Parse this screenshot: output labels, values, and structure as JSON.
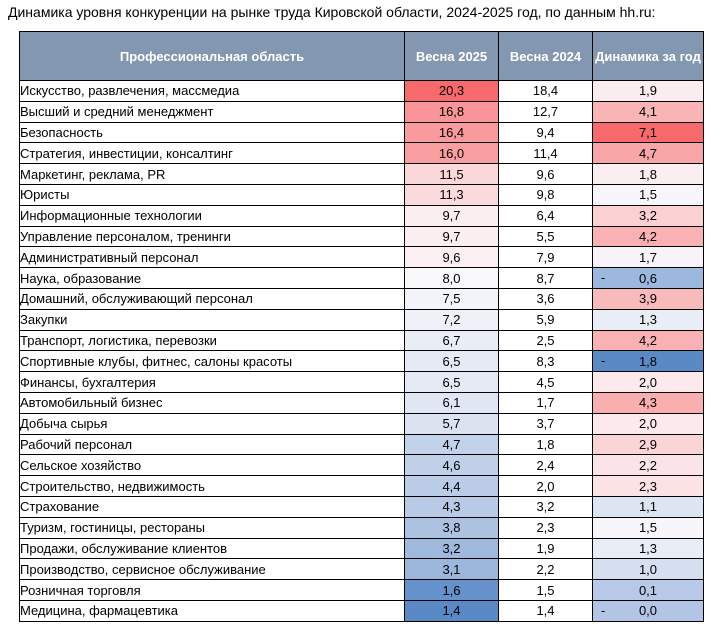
{
  "caption": "Динамика уровня конкуренции на рынке труда Кировской области, 2024-2025 год, по данным hh.ru:",
  "headers": {
    "area": "Профессиональная область",
    "spring2025": "Весна 2025",
    "spring2024": "Весна 2024",
    "dynamics": "Динамика за год"
  },
  "colors": {
    "header_bg": "#8497b0",
    "high_red": "#f8696b",
    "neutral": "#fcfcff",
    "low_blue": "#5a8ac6"
  },
  "rows": [
    {
      "area": "Искусство, развлечения, массмедиа",
      "s2025": "20,3",
      "s2024": "18,4",
      "sign": "",
      "dyn": "1,9",
      "c25": "#f8696b",
      "cdyn": "#fbecef"
    },
    {
      "area": "Высший и средний менеджмент",
      "s2025": "16,8",
      "s2024": "12,7",
      "sign": "",
      "dyn": "4,1",
      "c25": "#f99598",
      "cdyn": "#f9b4b6"
    },
    {
      "area": "Безопасность",
      "s2025": "16,4",
      "s2024": "9,4",
      "sign": "",
      "dyn": "7,1",
      "c25": "#f99a9c",
      "cdyn": "#f8696b"
    },
    {
      "area": "Стратегия, инвестиции, консалтинг",
      "s2025": "16,0",
      "s2024": "11,4",
      "sign": "",
      "dyn": "4,7",
      "c25": "#f99fa1",
      "cdyn": "#f9a6a8"
    },
    {
      "area": "Маркетинг, реклама, PR",
      "s2025": "11,5",
      "s2024": "9,6",
      "sign": "",
      "dyn": "1,8",
      "c25": "#fad7d9",
      "cdyn": "#fbeef1"
    },
    {
      "area": "Юристы",
      "s2025": "11,3",
      "s2024": "9,8",
      "sign": "",
      "dyn": "1,5",
      "c25": "#fadadc",
      "cdyn": "#f8f6fa"
    },
    {
      "area": "Информационные технологии",
      "s2025": "9,7",
      "s2024": "6,4",
      "sign": "",
      "dyn": "3,2",
      "c25": "#fbeef0",
      "cdyn": "#fad0d2"
    },
    {
      "area": "Управление персоналом, тренинги",
      "s2025": "9,7",
      "s2024": "5,5",
      "sign": "",
      "dyn": "4,2",
      "c25": "#fbeef0",
      "cdyn": "#f9b1b3"
    },
    {
      "area": "Административный персонал",
      "s2025": "9,6",
      "s2024": "7,9",
      "sign": "",
      "dyn": "1,7",
      "c25": "#fbeff2",
      "cdyn": "#f7f3f8"
    },
    {
      "area": "Наука, образование",
      "s2025": "8,0",
      "s2024": "8,7",
      "sign": "-",
      "dyn": "0,6",
      "c25": "#f9f8fb",
      "cdyn": "#9cb8de"
    },
    {
      "area": "Домашний, обслуживающий персонал",
      "s2025": "7,5",
      "s2024": "3,6",
      "sign": "",
      "dyn": "3,9",
      "c25": "#f2f4fa",
      "cdyn": "#f9babc"
    },
    {
      "area": "Закупки",
      "s2025": "7,2",
      "s2024": "5,9",
      "sign": "",
      "dyn": "1,3",
      "c25": "#eef1f8",
      "cdyn": "#e8edf6"
    },
    {
      "area": "Транспорт, логистика, перевозки",
      "s2025": "6,7",
      "s2024": "2,5",
      "sign": "",
      "dyn": "4,2",
      "c25": "#e8edf6",
      "cdyn": "#f9b1b3"
    },
    {
      "area": "Спортивные клубы, фитнес, салоны красоты",
      "s2025": "6,5",
      "s2024": "8,3",
      "sign": "-",
      "dyn": "1,8",
      "c25": "#e5eaf5",
      "cdyn": "#5a8ac6"
    },
    {
      "area": "Финансы, бухгалтерия",
      "s2025": "6,5",
      "s2024": "4,5",
      "sign": "",
      "dyn": "2,0",
      "c25": "#e5eaf5",
      "cdyn": "#fbe9ec"
    },
    {
      "area": "Автомобильный бизнес",
      "s2025": "6,1",
      "s2024": "1,7",
      "sign": "",
      "dyn": "4,3",
      "c25": "#e0e6f3",
      "cdyn": "#f9aeb0"
    },
    {
      "area": "Добыча сырья",
      "s2025": "5,7",
      "s2024": "3,7",
      "sign": "",
      "dyn": "2,0",
      "c25": "#dbe3f1",
      "cdyn": "#fbe9ec"
    },
    {
      "area": "Рабочий персонал",
      "s2025": "4,7",
      "s2024": "1,8",
      "sign": "",
      "dyn": "2,9",
      "c25": "#c2d2ea",
      "cdyn": "#fad5d7"
    },
    {
      "area": "Сельское хозяйство",
      "s2025": "4,6",
      "s2024": "2,4",
      "sign": "",
      "dyn": "2,2",
      "c25": "#c0d0e9",
      "cdyn": "#fbe4e7"
    },
    {
      "area": "Строительство, недвижимость",
      "s2025": "4,4",
      "s2024": "2,0",
      "sign": "",
      "dyn": "2,3",
      "c25": "#bbcce7",
      "cdyn": "#fbe2e5"
    },
    {
      "area": "Страхование",
      "s2025": "4,3",
      "s2024": "3,2",
      "sign": "",
      "dyn": "1,1",
      "c25": "#b9cae6",
      "cdyn": "#dde4f2"
    },
    {
      "area": "Туризм, гостиницы, рестораны",
      "s2025": "3,8",
      "s2024": "2,3",
      "sign": "",
      "dyn": "1,5",
      "c25": "#adc2e1",
      "cdyn": "#f8f6fa"
    },
    {
      "area": "Продажи, обслуживание клиентов",
      "s2025": "3,2",
      "s2024": "1,9",
      "sign": "",
      "dyn": "1,3",
      "c25": "#9fb9dc",
      "cdyn": "#e8edf6"
    },
    {
      "area": "Производство, сервисное обслуживание",
      "s2025": "3,1",
      "s2024": "2,2",
      "sign": "",
      "dyn": "1,0",
      "c25": "#9cb7db",
      "cdyn": "#d6dff0"
    },
    {
      "area": "Розничная торговля",
      "s2025": "1,6",
      "s2024": "1,5",
      "sign": "",
      "dyn": "0,1",
      "c25": "#6692cb",
      "cdyn": "#b7c9e6"
    },
    {
      "area": "Медицина, фармацевтика",
      "s2025": "1,4",
      "s2024": "1,4",
      "sign": "-",
      "dyn": "0,0",
      "c25": "#5a8ac6",
      "cdyn": "#b2c5e4"
    }
  ]
}
